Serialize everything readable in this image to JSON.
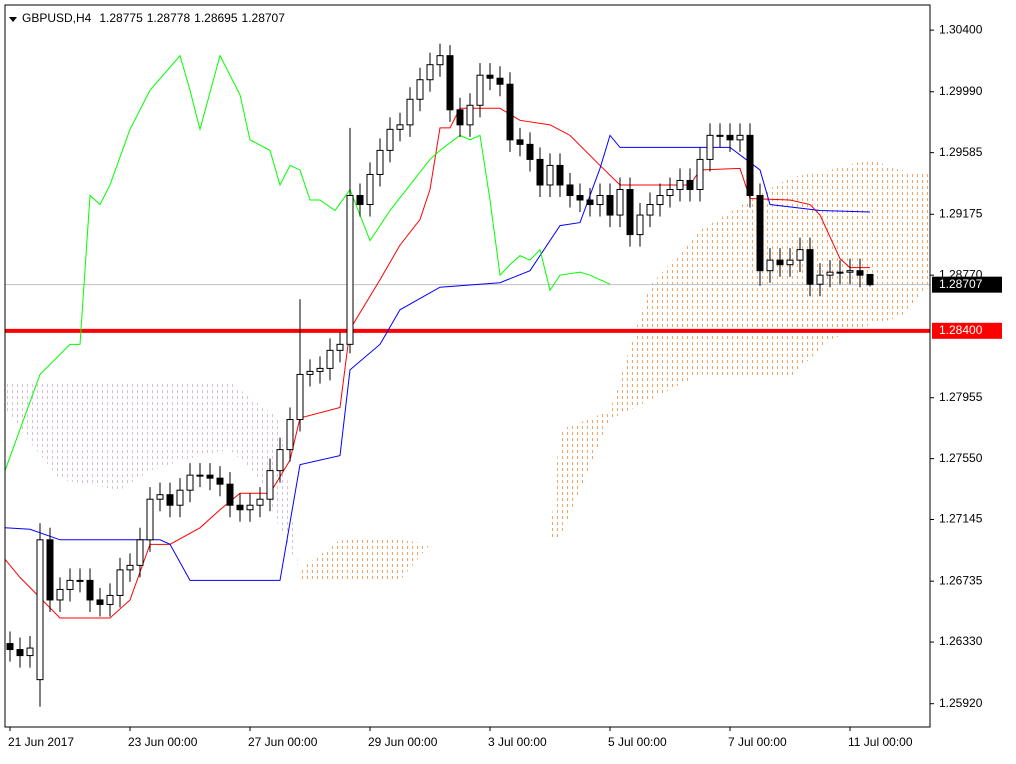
{
  "chart_data": {
    "type": "candlestick",
    "title": "GBPUSD,H4",
    "open": [
      1.2632,
      1.2628,
      1.2624,
      1.2608,
      1.2701,
      1.2661,
      1.2668,
      1.2674,
      1.2674,
      1.2661,
      1.2658,
      1.2664,
      1.2681,
      1.2684,
      1.2701,
      1.2728,
      1.2731,
      1.2724,
      1.2734,
      1.2744,
      1.2744,
      1.2742,
      1.2738,
      1.2724,
      1.2721,
      1.2724,
      1.2728,
      1.2747,
      1.2761,
      1.2781,
      1.2811,
      1.2813,
      1.2815,
      1.2827,
      1.2831,
      1.293,
      1.2924,
      1.2944,
      1.296,
      1.2974,
      1.2977,
      1.2994,
      1.3007,
      1.3017,
      1.3023,
      1.2987,
      1.2977,
      1.299,
      1.301,
      1.3008,
      1.3004,
      1.2967,
      1.2964,
      1.2954,
      1.2937,
      1.295,
      1.2937,
      1.293,
      1.2927,
      1.2924,
      1.293,
      1.2917,
      1.2934,
      1.2904,
      1.2917,
      1.2924,
      1.293,
      1.2934,
      1.294,
      1.2934,
      1.2954,
      1.297,
      1.297,
      1.2967,
      1.297,
      1.293,
      1.288,
      1.2887,
      1.2884,
      1.2887,
      1.2894,
      1.2871,
      1.2877,
      1.2879,
      1.2879,
      1.288,
      1.28775
    ],
    "high": [
      1.264,
      1.2636,
      1.2637,
      1.2712,
      1.2709,
      1.2676,
      1.2682,
      1.2682,
      1.2682,
      1.2669,
      1.2672,
      1.2689,
      1.2692,
      1.2709,
      1.2736,
      1.2739,
      1.2739,
      1.2742,
      1.2752,
      1.2752,
      1.2752,
      1.275,
      1.2746,
      1.2732,
      1.2732,
      1.2736,
      1.2755,
      1.2769,
      1.2789,
      1.2861,
      1.2821,
      1.2823,
      1.2835,
      1.2839,
      1.2975,
      1.2938,
      1.2952,
      1.2968,
      1.2982,
      1.2985,
      1.3002,
      1.3015,
      1.3025,
      1.3031,
      1.303,
      1.2995,
      1.2998,
      1.3018,
      1.3018,
      1.3016,
      1.3012,
      1.2975,
      1.2972,
      1.2962,
      1.2958,
      1.2958,
      1.2945,
      1.2938,
      1.2935,
      1.2938,
      1.2938,
      1.2942,
      1.2942,
      1.2925,
      1.2932,
      1.2938,
      1.2942,
      1.2948,
      1.2948,
      1.2962,
      1.2978,
      1.2978,
      1.2978,
      1.2978,
      1.2978,
      1.2938,
      1.2895,
      1.2895,
      1.2895,
      1.2902,
      1.2902,
      1.2885,
      1.2887,
      1.2887,
      1.2888,
      1.2888,
      1.28778
    ],
    "low": [
      1.262,
      1.2616,
      1.2616,
      1.259,
      1.2653,
      1.2653,
      1.266,
      1.2666,
      1.2653,
      1.265,
      1.265,
      1.2656,
      1.2673,
      1.2676,
      1.2693,
      1.272,
      1.2716,
      1.2716,
      1.2726,
      1.2736,
      1.2734,
      1.273,
      1.2716,
      1.2713,
      1.2713,
      1.2716,
      1.272,
      1.2739,
      1.2753,
      1.2773,
      1.2803,
      1.2805,
      1.2807,
      1.2819,
      1.2825,
      1.2916,
      1.2916,
      1.2936,
      1.2952,
      1.2966,
      1.2969,
      1.2986,
      1.2999,
      1.3009,
      1.2979,
      1.2969,
      1.2969,
      1.2982,
      1.3,
      1.2996,
      1.2959,
      1.2956,
      1.2946,
      1.2929,
      1.2929,
      1.2929,
      1.2922,
      1.2919,
      1.2916,
      1.2916,
      1.2909,
      1.2909,
      1.2896,
      1.2896,
      1.2909,
      1.2916,
      1.2922,
      1.2926,
      1.2926,
      1.2926,
      1.2946,
      1.2962,
      1.2959,
      1.2959,
      1.2922,
      1.287,
      1.2872,
      1.2876,
      1.2876,
      1.2879,
      1.2863,
      1.2863,
      1.2869,
      1.2871,
      1.2871,
      1.2869,
      1.28695
    ],
    "close": [
      1.2628,
      1.2624,
      1.2629,
      1.2701,
      1.2661,
      1.2668,
      1.2674,
      1.2674,
      1.2661,
      1.2658,
      1.2664,
      1.2681,
      1.2684,
      1.2701,
      1.2728,
      1.2731,
      1.2724,
      1.2734,
      1.2744,
      1.2744,
      1.2742,
      1.2738,
      1.2724,
      1.2721,
      1.2724,
      1.2728,
      1.2747,
      1.2761,
      1.2781,
      1.2811,
      1.2813,
      1.2815,
      1.2827,
      1.2831,
      1.293,
      1.2924,
      1.2944,
      1.296,
      1.2974,
      1.2977,
      1.2994,
      1.3007,
      1.3017,
      1.3023,
      1.2987,
      1.2977,
      1.299,
      1.301,
      1.3008,
      1.3004,
      1.2967,
      1.2964,
      1.2954,
      1.2937,
      1.295,
      1.2937,
      1.293,
      1.2927,
      1.2924,
      1.293,
      1.2917,
      1.2934,
      1.2904,
      1.2917,
      1.2924,
      1.293,
      1.2934,
      1.294,
      1.2934,
      1.2954,
      1.297,
      1.297,
      1.2967,
      1.297,
      1.293,
      1.288,
      1.2887,
      1.2884,
      1.2887,
      1.2894,
      1.2871,
      1.2877,
      1.2879,
      1.2879,
      1.288,
      1.2877,
      1.28707
    ],
    "up_color": "#ffffff",
    "down_color": "#000000",
    "xlim": [
      -0.5,
      92
    ],
    "xticks": [
      {
        "value": 0,
        "label": "21 Jun 2017"
      },
      {
        "value": 12,
        "label": "23 Jun 00:00"
      },
      {
        "value": 24,
        "label": "27 Jun 00:00"
      },
      {
        "value": 36,
        "label": "29 Jun 00:00"
      },
      {
        "value": 48,
        "label": "3 Jul 00:00"
      },
      {
        "value": 60,
        "label": "5 Jul 00:00"
      },
      {
        "value": 72,
        "label": "7 Jul 00:00"
      },
      {
        "value": 84,
        "label": "11 Jul 00:00"
      }
    ],
    "ylim": [
      1.25765,
      1.30567
    ],
    "yticks": [
      {
        "value": 1.304,
        "label": "1.30400"
      },
      {
        "value": 1.2999,
        "label": "1.29990"
      },
      1.29585,
      1.29175,
      {
        "value": 1.2877,
        "label": "1.28770"
      },
      1.27955,
      {
        "value": 1.2755,
        "label": "1.27550"
      },
      1.27145,
      1.26735,
      {
        "value": 1.2633,
        "label": "1.26330"
      },
      {
        "value": 1.2592,
        "label": "1.25920"
      }
    ],
    "current_price_color": "#c0c0c0",
    "levels": [
      {
        "value": 1.284,
        "label": "1.28400",
        "color": "#ff0000"
      }
    ],
    "cloud": {
      "x": [
        -0.5,
        5,
        11,
        14,
        19,
        22,
        25,
        27,
        29,
        33,
        39,
        42,
        54,
        55,
        60,
        64,
        69,
        74,
        78,
        82,
        86,
        89,
        92
      ],
      "span_a": [
        1.2787,
        1.2741,
        1.2734,
        1.2747,
        1.2757,
        1.2761,
        1.2741,
        1.2708,
        1.2681,
        1.2701,
        1.2701,
        1.2698,
        1.2701,
        1.2774,
        1.2787,
        1.287,
        1.2907,
        1.2927,
        1.2942,
        1.2947,
        1.2954,
        1.2947,
        1.2944
      ],
      "span_b": [
        1.2806,
        1.2806,
        1.2806,
        1.2806,
        1.2806,
        1.2806,
        1.2791,
        1.2781,
        1.2674,
        1.2674,
        1.2674,
        1.2698,
        1.2701,
        1.2701,
        1.2781,
        1.2794,
        1.2811,
        1.2809,
        1.2809,
        1.2834,
        1.2844,
        1.2849,
        1.287
      ],
      "up_color": "#f4a460",
      "down_color": "#d8bfd8"
    },
    "lines": [
      {
        "color": "#ff0000",
        "x": [
          -0.5,
          1,
          5,
          10,
          12,
          14,
          16,
          19,
          21,
          23,
          26,
          28,
          29,
          33,
          34,
          37,
          39,
          41,
          42,
          43,
          44,
          45,
          49,
          51,
          54,
          56,
          59,
          61,
          68,
          69,
          73,
          74,
          78,
          80,
          81,
          83,
          84,
          86
        ],
        "values": [
          1.2688,
          1.2676,
          1.2649,
          1.2649,
          1.2661,
          1.2698,
          1.2698,
          1.2709,
          1.2721,
          1.2732,
          1.2732,
          1.2754,
          1.2782,
          1.2789,
          1.2841,
          1.2874,
          1.2897,
          1.2914,
          1.2934,
          1.2975,
          1.2975,
          1.2988,
          1.2988,
          1.298,
          1.2977,
          1.297,
          1.295,
          1.2937,
          1.2937,
          1.2947,
          1.2948,
          1.2928,
          1.2927,
          1.2924,
          1.2917,
          1.2888,
          1.2882,
          1.2882
        ]
      },
      {
        "color": "#0000ff",
        "x": [
          -0.5,
          2,
          5,
          15,
          16,
          18,
          27,
          29,
          33,
          34,
          37,
          39,
          43,
          49,
          52,
          55,
          57,
          59,
          60,
          61,
          72,
          75,
          76,
          81,
          86
        ],
        "values": [
          1.2709,
          1.2708,
          1.2701,
          1.2701,
          1.2698,
          1.2674,
          1.2674,
          1.2751,
          1.2757,
          1.2814,
          1.2831,
          1.2854,
          1.2869,
          1.2872,
          1.288,
          1.291,
          1.2912,
          1.2948,
          1.297,
          1.2962,
          1.2962,
          1.2947,
          1.2924,
          1.292,
          1.2919
        ]
      },
      {
        "color": "#00ff00",
        "x": [
          -0.5,
          3,
          6,
          7,
          8,
          9,
          10,
          12,
          14,
          17,
          18,
          19,
          21,
          23,
          24,
          26,
          27,
          28,
          29,
          30,
          31,
          32.5,
          34,
          36,
          38,
          40,
          42,
          43,
          45,
          46,
          47,
          48,
          49,
          50,
          51,
          52,
          53,
          54,
          55,
          57,
          58,
          60
        ],
        "values": [
          1.2747,
          1.2811,
          1.2831,
          1.2831,
          1.293,
          1.2924,
          1.2937,
          1.2974,
          1.3,
          1.3023,
          1.3,
          1.2974,
          1.3023,
          1.2997,
          1.2967,
          1.296,
          1.2937,
          1.295,
          1.2947,
          1.2927,
          1.2927,
          1.292,
          1.2934,
          1.29,
          1.292,
          1.2937,
          1.2954,
          1.296,
          1.297,
          1.2967,
          1.297,
          1.2927,
          1.2877,
          1.2884,
          1.289,
          1.2887,
          1.2894,
          1.2867,
          1.2877,
          1.2879,
          1.2877,
          1.2871
        ]
      }
    ]
  }
}
